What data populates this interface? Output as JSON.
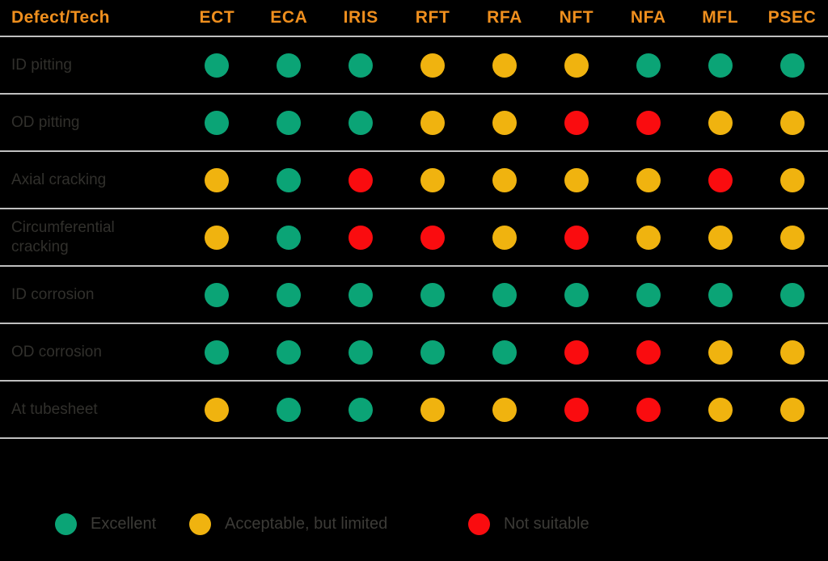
{
  "chart_data": {
    "type": "table",
    "corner_label": "Defect/Tech",
    "columns": [
      "ECT",
      "ECA",
      "IRIS",
      "RFT",
      "RFA",
      "NFT",
      "NFA",
      "MFL",
      "PSEC"
    ],
    "rows": [
      "ID pitting",
      "OD pitting",
      "Axial cracking",
      "Circumferential cracking",
      "ID corrosion",
      "OD corrosion",
      "At tubesheet"
    ],
    "values": [
      [
        "green",
        "green",
        "green",
        "yellow",
        "yellow",
        "yellow",
        "green",
        "green",
        "green"
      ],
      [
        "green",
        "green",
        "green",
        "yellow",
        "yellow",
        "red",
        "red",
        "yellow",
        "yellow"
      ],
      [
        "yellow",
        "green",
        "red",
        "yellow",
        "yellow",
        "yellow",
        "yellow",
        "red",
        "yellow"
      ],
      [
        "yellow",
        "green",
        "red",
        "red",
        "yellow",
        "red",
        "yellow",
        "yellow",
        "yellow"
      ],
      [
        "green",
        "green",
        "green",
        "green",
        "green",
        "green",
        "green",
        "green",
        "green"
      ],
      [
        "green",
        "green",
        "green",
        "green",
        "green",
        "red",
        "red",
        "yellow",
        "yellow"
      ],
      [
        "yellow",
        "green",
        "green",
        "yellow",
        "yellow",
        "red",
        "red",
        "yellow",
        "yellow"
      ]
    ],
    "legend": [
      {
        "value": "green",
        "label": "Excellent"
      },
      {
        "value": "yellow",
        "label": "Acceptable, but limited"
      },
      {
        "value": "red",
        "label": "Not suitable"
      }
    ],
    "layout_hints": {
      "legend_position": "bottom",
      "grid": "horizontal dividers only"
    }
  },
  "colors": {
    "green": "#0BA476",
    "yellow": "#F0B30F",
    "red": "#FA0C0F",
    "header_text": "#EF8F1E",
    "row_label": "#31302C",
    "legend_label": "#3C3B37",
    "divider": "#BFBFBF",
    "background": "#000000"
  }
}
